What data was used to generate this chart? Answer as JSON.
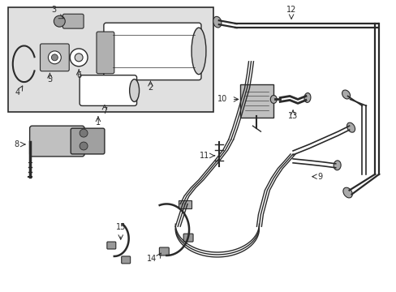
{
  "bg_color": "#ffffff",
  "line_color": "#2a2a2a",
  "box_bg": "#e0e0e0",
  "fig_width": 4.89,
  "fig_height": 3.6,
  "dpi": 100
}
